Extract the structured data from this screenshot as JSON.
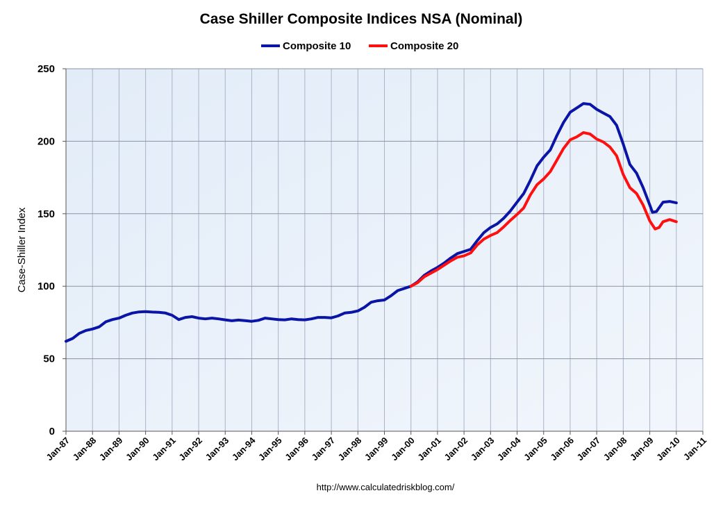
{
  "chart_data": {
    "type": "line",
    "title": "Case Shiller Composite Indices NSA (Nominal)",
    "xlabel": "",
    "ylabel": "Case-Shiller Index",
    "footer": "http://www.calculatedriskblog.com/",
    "legend_position": "top-center",
    "grid": true,
    "ylim": [
      0,
      250
    ],
    "yticks": [
      0,
      50,
      100,
      150,
      200,
      250
    ],
    "xlim": [
      1987,
      2011
    ],
    "xticks": [
      "Jan-87",
      "Jan-88",
      "Jan-89",
      "Jan-90",
      "Jan-91",
      "Jan-92",
      "Jan-93",
      "Jan-94",
      "Jan-95",
      "Jan-96",
      "Jan-97",
      "Jan-98",
      "Jan-99",
      "Jan-00",
      "Jan-01",
      "Jan-02",
      "Jan-03",
      "Jan-04",
      "Jan-05",
      "Jan-06",
      "Jan-07",
      "Jan-08",
      "Jan-09",
      "Jan-10",
      "Jan-11"
    ],
    "series": [
      {
        "name": "Composite 10",
        "color": "#0a14a6",
        "points": [
          [
            1987.0,
            62
          ],
          [
            1987.25,
            64
          ],
          [
            1987.5,
            67.5
          ],
          [
            1987.75,
            69.5
          ],
          [
            1988.0,
            70.5
          ],
          [
            1988.25,
            72
          ],
          [
            1988.5,
            75.5
          ],
          [
            1988.75,
            77
          ],
          [
            1989.0,
            78
          ],
          [
            1989.25,
            80
          ],
          [
            1989.5,
            81.5
          ],
          [
            1989.75,
            82.3
          ],
          [
            1990.0,
            82.5
          ],
          [
            1990.25,
            82.2
          ],
          [
            1990.5,
            82
          ],
          [
            1990.75,
            81.5
          ],
          [
            1991.0,
            80
          ],
          [
            1991.25,
            77
          ],
          [
            1991.5,
            78.5
          ],
          [
            1991.75,
            79
          ],
          [
            1992.0,
            78
          ],
          [
            1992.25,
            77.5
          ],
          [
            1992.5,
            78
          ],
          [
            1992.75,
            77.5
          ],
          [
            1993.0,
            76.8
          ],
          [
            1993.25,
            76.2
          ],
          [
            1993.5,
            76.7
          ],
          [
            1993.75,
            76.3
          ],
          [
            1994.0,
            75.8
          ],
          [
            1994.25,
            76.5
          ],
          [
            1994.5,
            78
          ],
          [
            1994.75,
            77.5
          ],
          [
            1995.0,
            77
          ],
          [
            1995.25,
            76.8
          ],
          [
            1995.5,
            77.5
          ],
          [
            1995.75,
            77
          ],
          [
            1996.0,
            76.8
          ],
          [
            1996.25,
            77.5
          ],
          [
            1996.5,
            78.5
          ],
          [
            1996.75,
            78.5
          ],
          [
            1997.0,
            78.2
          ],
          [
            1997.25,
            79.5
          ],
          [
            1997.5,
            81.5
          ],
          [
            1997.75,
            82
          ],
          [
            1998.0,
            83
          ],
          [
            1998.25,
            85.5
          ],
          [
            1998.5,
            89
          ],
          [
            1998.75,
            90
          ],
          [
            1999.0,
            90.5
          ],
          [
            1999.25,
            93.5
          ],
          [
            1999.5,
            97
          ],
          [
            1999.75,
            98.5
          ],
          [
            2000.0,
            100
          ],
          [
            2000.25,
            103
          ],
          [
            2000.5,
            107.5
          ],
          [
            2000.75,
            110.5
          ],
          [
            2001.0,
            113
          ],
          [
            2001.25,
            116
          ],
          [
            2001.5,
            119.5
          ],
          [
            2001.75,
            122.5
          ],
          [
            2002.0,
            124
          ],
          [
            2002.25,
            125.5
          ],
          [
            2002.5,
            131.5
          ],
          [
            2002.75,
            137
          ],
          [
            2003.0,
            140.5
          ],
          [
            2003.25,
            143
          ],
          [
            2003.5,
            147
          ],
          [
            2003.75,
            152
          ],
          [
            2004.0,
            158
          ],
          [
            2004.25,
            164
          ],
          [
            2004.5,
            173
          ],
          [
            2004.75,
            183
          ],
          [
            2005.0,
            189
          ],
          [
            2005.25,
            194
          ],
          [
            2005.5,
            204
          ],
          [
            2005.75,
            213
          ],
          [
            2006.0,
            220
          ],
          [
            2006.25,
            223
          ],
          [
            2006.5,
            226
          ],
          [
            2006.75,
            225.5
          ],
          [
            2007.0,
            222
          ],
          [
            2007.25,
            219.5
          ],
          [
            2007.5,
            217
          ],
          [
            2007.75,
            211
          ],
          [
            2008.0,
            198
          ],
          [
            2008.25,
            184
          ],
          [
            2008.5,
            178
          ],
          [
            2008.75,
            168
          ],
          [
            2009.0,
            156
          ],
          [
            2009.1,
            151
          ],
          [
            2009.25,
            151.5
          ],
          [
            2009.5,
            158
          ],
          [
            2009.75,
            158.5
          ],
          [
            2010.0,
            157.5
          ]
        ]
      },
      {
        "name": "Composite 20",
        "color": "#ff1010",
        "points": [
          [
            2000.0,
            100
          ],
          [
            2000.25,
            102.5
          ],
          [
            2000.5,
            106.5
          ],
          [
            2000.75,
            109
          ],
          [
            2001.0,
            111.5
          ],
          [
            2001.25,
            114.5
          ],
          [
            2001.5,
            117.5
          ],
          [
            2001.75,
            120
          ],
          [
            2002.0,
            121
          ],
          [
            2002.25,
            123
          ],
          [
            2002.5,
            128.5
          ],
          [
            2002.75,
            132.5
          ],
          [
            2003.0,
            135
          ],
          [
            2003.25,
            137
          ],
          [
            2003.5,
            141
          ],
          [
            2003.75,
            145.5
          ],
          [
            2004.0,
            149.5
          ],
          [
            2004.25,
            154
          ],
          [
            2004.5,
            163
          ],
          [
            2004.75,
            170
          ],
          [
            2005.0,
            174
          ],
          [
            2005.25,
            179
          ],
          [
            2005.5,
            187
          ],
          [
            2005.75,
            195
          ],
          [
            2006.0,
            201
          ],
          [
            2006.25,
            203
          ],
          [
            2006.5,
            206
          ],
          [
            2006.75,
            205
          ],
          [
            2007.0,
            201.5
          ],
          [
            2007.25,
            199.5
          ],
          [
            2007.5,
            196
          ],
          [
            2007.75,
            190
          ],
          [
            2008.0,
            177
          ],
          [
            2008.25,
            168
          ],
          [
            2008.5,
            164
          ],
          [
            2008.75,
            156
          ],
          [
            2009.0,
            145
          ],
          [
            2009.2,
            139.5
          ],
          [
            2009.35,
            140.5
          ],
          [
            2009.5,
            144.5
          ],
          [
            2009.75,
            146
          ],
          [
            2010.0,
            144.5
          ]
        ]
      }
    ]
  }
}
